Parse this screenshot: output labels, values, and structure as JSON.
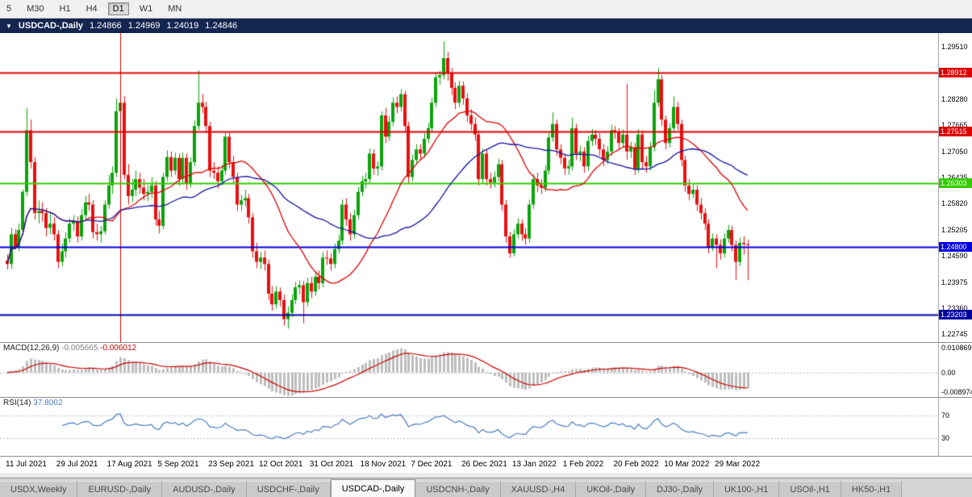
{
  "toolbar": {
    "timeframes": [
      {
        "label": "5",
        "active": false
      },
      {
        "label": "M30",
        "active": false
      },
      {
        "label": "H1",
        "active": false
      },
      {
        "label": "H4",
        "active": false
      },
      {
        "label": "D1",
        "active": true
      },
      {
        "label": "W1",
        "active": false
      },
      {
        "label": "MN",
        "active": false
      }
    ]
  },
  "title_bar": {
    "collapse_icon": "▼",
    "symbol": "USDCAD-,Daily",
    "open": "1.24866",
    "high": "1.24969",
    "low": "1.24019",
    "close": "1.24846"
  },
  "hlines": [
    {
      "price": 1.28912,
      "color": "#dd0000",
      "width": 2
    },
    {
      "price": 1.27515,
      "color": "#dd0000",
      "width": 2
    },
    {
      "price": 1.26303,
      "color": "#33cc00",
      "width": 2
    },
    {
      "price": 1.248,
      "color": "#0000dd",
      "width": 2
    },
    {
      "price": 1.23203,
      "color": "#0000a0",
      "width": 2
    }
  ],
  "vlines": [
    {
      "index": 29,
      "color": "#cc0000"
    }
  ],
  "chart_data": {
    "type": "candlestick",
    "symbol": "USDCAD",
    "timeframe": "Daily",
    "ylim": [
      1.2256,
      1.2984
    ],
    "colors": {
      "bull": "#0ba30b",
      "bear": "#e81010"
    },
    "y_ticks": [
      1.2951,
      1.2828,
      1.27665,
      1.2705,
      1.26435,
      1.2582,
      1.25205,
      1.2459,
      1.23975,
      1.2336,
      1.22745
    ],
    "x_label_step": 13,
    "x_labels": [
      "11 Jul 2021",
      "29 Jul 2021",
      "17 Aug 2021",
      "5 Sep 2021",
      "23 Sep 2021",
      "12 Oct 2021",
      "31 Oct 2021",
      "18 Nov 2021",
      "7 Dec 2021",
      "26 Dec 2021",
      "13 Jan 2022",
      "1 Feb 2022",
      "20 Feb 2022",
      "10 Mar 2022",
      "29 Mar 2022"
    ],
    "overlays": [
      {
        "name": "ma-fast",
        "period": 21,
        "color": "#dd0000"
      },
      {
        "name": "ma-slow",
        "period": 42,
        "color": "#1414a0"
      }
    ],
    "indicators": [
      {
        "name": "MACD",
        "label": "MACD(12,26,9)",
        "value_main": "-0.005665",
        "value_signal": "-0.006012",
        "params": [
          12,
          26,
          9
        ],
        "range": [
          -0.008974,
          0.010869
        ],
        "axis_labels": [
          "0.010869",
          "0.00",
          "-0.008974"
        ],
        "colors": {
          "histogram": "#bdbdbd",
          "signal": "#cc0000"
        }
      },
      {
        "name": "RSI",
        "label": "RSI(14)",
        "value": "37.8002",
        "period": 14,
        "levels": [
          70,
          30
        ],
        "axis_labels": [
          "70",
          "30"
        ],
        "range": [
          0,
          100
        ],
        "color": "#4a7ebf"
      }
    ],
    "candles": [
      [
        1.2448,
        1.2463,
        1.2427,
        1.244
      ],
      [
        1.244,
        1.2525,
        1.2428,
        1.251
      ],
      [
        1.251,
        1.2522,
        1.2475,
        1.248
      ],
      [
        1.248,
        1.2535,
        1.247,
        1.252
      ],
      [
        1.252,
        1.2615,
        1.2508,
        1.261
      ],
      [
        1.261,
        1.2807,
        1.26,
        1.2755
      ],
      [
        1.2755,
        1.278,
        1.2665,
        1.268
      ],
      [
        1.268,
        1.2692,
        1.2545,
        1.256
      ],
      [
        1.256,
        1.259,
        1.2535,
        1.2565
      ],
      [
        1.2565,
        1.2585,
        1.254,
        1.256
      ],
      [
        1.256,
        1.2572,
        1.2505,
        1.2525
      ],
      [
        1.2525,
        1.256,
        1.251,
        1.2535
      ],
      [
        1.2535,
        1.255,
        1.2495,
        1.251
      ],
      [
        1.251,
        1.252,
        1.243,
        1.2445
      ],
      [
        1.2445,
        1.2488,
        1.2435,
        1.247
      ],
      [
        1.247,
        1.2515,
        1.2455,
        1.25
      ],
      [
        1.25,
        1.2548,
        1.249,
        1.2535
      ],
      [
        1.2535,
        1.2555,
        1.2518,
        1.254
      ],
      [
        1.254,
        1.2552,
        1.249,
        1.2505
      ],
      [
        1.2505,
        1.257,
        1.2495,
        1.2555
      ],
      [
        1.2555,
        1.26,
        1.2545,
        1.2585
      ],
      [
        1.2585,
        1.2605,
        1.2565,
        1.258
      ],
      [
        1.258,
        1.259,
        1.25,
        1.2515
      ],
      [
        1.2515,
        1.2535,
        1.2495,
        1.251
      ],
      [
        1.251,
        1.253,
        1.249,
        1.2517
      ],
      [
        1.2517,
        1.259,
        1.251,
        1.258
      ],
      [
        1.258,
        1.265,
        1.257,
        1.2625
      ],
      [
        1.2625,
        1.267,
        1.2605,
        1.2655
      ],
      [
        1.2655,
        1.283,
        1.2645,
        1.28
      ],
      [
        1.28,
        1.2949,
        1.277,
        1.282
      ],
      [
        1.282,
        1.2835,
        1.264,
        1.265
      ],
      [
        1.265,
        1.2675,
        1.258,
        1.26
      ],
      [
        1.26,
        1.264,
        1.2585,
        1.2615
      ],
      [
        1.2615,
        1.266,
        1.26,
        1.264
      ],
      [
        1.264,
        1.2655,
        1.2605,
        1.262
      ],
      [
        1.262,
        1.264,
        1.259,
        1.2605
      ],
      [
        1.2605,
        1.2625,
        1.2588,
        1.261
      ],
      [
        1.261,
        1.2645,
        1.2595,
        1.2625
      ],
      [
        1.2625,
        1.2635,
        1.253,
        1.2545
      ],
      [
        1.2545,
        1.2565,
        1.2512,
        1.253
      ],
      [
        1.253,
        1.2655,
        1.2522,
        1.2645
      ],
      [
        1.2645,
        1.2708,
        1.2635,
        1.2692
      ],
      [
        1.2692,
        1.2705,
        1.2645,
        1.266
      ],
      [
        1.266,
        1.2702,
        1.265,
        1.269
      ],
      [
        1.269,
        1.27,
        1.2625,
        1.264
      ],
      [
        1.264,
        1.2702,
        1.263,
        1.269
      ],
      [
        1.269,
        1.27,
        1.2615,
        1.263
      ],
      [
        1.263,
        1.2692,
        1.262,
        1.268
      ],
      [
        1.268,
        1.2778,
        1.267,
        1.2765
      ],
      [
        1.2765,
        1.2896,
        1.2755,
        1.282
      ],
      [
        1.282,
        1.284,
        1.2795,
        1.281
      ],
      [
        1.281,
        1.2822,
        1.2748,
        1.2765
      ],
      [
        1.2765,
        1.2775,
        1.2645,
        1.266
      ],
      [
        1.266,
        1.268,
        1.264,
        1.2655
      ],
      [
        1.2655,
        1.267,
        1.2618,
        1.2635
      ],
      [
        1.2635,
        1.2675,
        1.2625,
        1.266
      ],
      [
        1.266,
        1.2752,
        1.265,
        1.274
      ],
      [
        1.274,
        1.275,
        1.2665,
        1.268
      ],
      [
        1.268,
        1.2695,
        1.263,
        1.2645
      ],
      [
        1.2645,
        1.2655,
        1.2565,
        1.258
      ],
      [
        1.258,
        1.2602,
        1.2565,
        1.259
      ],
      [
        1.259,
        1.2615,
        1.2575,
        1.2595
      ],
      [
        1.2595,
        1.2605,
        1.2535,
        1.255
      ],
      [
        1.255,
        1.256,
        1.2455,
        1.247
      ],
      [
        1.247,
        1.249,
        1.243,
        1.2445
      ],
      [
        1.2445,
        1.2468,
        1.2428,
        1.2455
      ],
      [
        1.2455,
        1.2472,
        1.2425,
        1.244
      ],
      [
        1.244,
        1.245,
        1.2355,
        1.237
      ],
      [
        1.237,
        1.2388,
        1.233,
        1.2345
      ],
      [
        1.2345,
        1.2388,
        1.2335,
        1.2375
      ],
      [
        1.2375,
        1.2385,
        1.234,
        1.2355
      ],
      [
        1.2355,
        1.2368,
        1.2295,
        1.231
      ],
      [
        1.231,
        1.234,
        1.2288,
        1.2325
      ],
      [
        1.2325,
        1.2368,
        1.2315,
        1.2355
      ],
      [
        1.2355,
        1.2398,
        1.2345,
        1.2385
      ],
      [
        1.2385,
        1.2402,
        1.2368,
        1.239
      ],
      [
        1.239,
        1.24,
        1.23,
        1.235
      ],
      [
        1.235,
        1.2408,
        1.234,
        1.2395
      ],
      [
        1.2395,
        1.241,
        1.236,
        1.2375
      ],
      [
        1.2375,
        1.2422,
        1.2365,
        1.241
      ],
      [
        1.241,
        1.2425,
        1.238,
        1.2395
      ],
      [
        1.2395,
        1.2468,
        1.2385,
        1.2455
      ],
      [
        1.2455,
        1.2472,
        1.2438,
        1.2453
      ],
      [
        1.2453,
        1.2465,
        1.2425,
        1.244
      ],
      [
        1.244,
        1.2488,
        1.243,
        1.2475
      ],
      [
        1.2475,
        1.2508,
        1.2465,
        1.2495
      ],
      [
        1.2495,
        1.2592,
        1.2485,
        1.258
      ],
      [
        1.258,
        1.2595,
        1.253,
        1.2545
      ],
      [
        1.2545,
        1.256,
        1.2495,
        1.251
      ],
      [
        1.251,
        1.2568,
        1.25,
        1.2555
      ],
      [
        1.2555,
        1.2622,
        1.2545,
        1.261
      ],
      [
        1.261,
        1.2648,
        1.26,
        1.2635
      ],
      [
        1.2635,
        1.2655,
        1.2618,
        1.264
      ],
      [
        1.264,
        1.2712,
        1.263,
        1.27
      ],
      [
        1.27,
        1.271,
        1.265,
        1.2665
      ],
      [
        1.2665,
        1.2682,
        1.2648,
        1.267
      ],
      [
        1.267,
        1.28,
        1.266,
        1.279
      ],
      [
        1.279,
        1.2808,
        1.2725,
        1.274
      ],
      [
        1.274,
        1.2788,
        1.273,
        1.2775
      ],
      [
        1.2775,
        1.2832,
        1.2765,
        1.282
      ],
      [
        1.282,
        1.2835,
        1.2795,
        1.281
      ],
      [
        1.281,
        1.2852,
        1.28,
        1.284
      ],
      [
        1.284,
        1.2848,
        1.275,
        1.2765
      ],
      [
        1.2765,
        1.2775,
        1.263,
        1.2645
      ],
      [
        1.2645,
        1.2698,
        1.2635,
        1.2685
      ],
      [
        1.2685,
        1.2722,
        1.2675,
        1.271
      ],
      [
        1.271,
        1.2722,
        1.2685,
        1.27
      ],
      [
        1.27,
        1.2748,
        1.269,
        1.2735
      ],
      [
        1.2735,
        1.2772,
        1.2725,
        1.276
      ],
      [
        1.276,
        1.2832,
        1.275,
        1.282
      ],
      [
        1.282,
        1.2892,
        1.281,
        1.288
      ],
      [
        1.288,
        1.2895,
        1.2862,
        1.2885
      ],
      [
        1.2885,
        1.2964,
        1.2875,
        1.2925
      ],
      [
        1.2925,
        1.294,
        1.2872,
        1.289
      ],
      [
        1.289,
        1.2902,
        1.2838,
        1.2855
      ],
      [
        1.2855,
        1.2868,
        1.2805,
        1.282
      ],
      [
        1.282,
        1.2872,
        1.281,
        1.286
      ],
      [
        1.286,
        1.287,
        1.2815,
        1.283
      ],
      [
        1.283,
        1.2842,
        1.2775,
        1.279
      ],
      [
        1.279,
        1.2805,
        1.2755,
        1.277
      ],
      [
        1.277,
        1.2785,
        1.273,
        1.2745
      ],
      [
        1.2745,
        1.2755,
        1.2625,
        1.264
      ],
      [
        1.264,
        1.2712,
        1.263,
        1.27
      ],
      [
        1.27,
        1.271,
        1.2625,
        1.264
      ],
      [
        1.264,
        1.2655,
        1.2618,
        1.2632
      ],
      [
        1.2632,
        1.2658,
        1.262,
        1.2645
      ],
      [
        1.2645,
        1.2688,
        1.2635,
        1.2675
      ],
      [
        1.2675,
        1.2685,
        1.2565,
        1.258
      ],
      [
        1.258,
        1.259,
        1.249,
        1.2505
      ],
      [
        1.2505,
        1.2515,
        1.2455,
        1.2465
      ],
      [
        1.2465,
        1.2522,
        1.2458,
        1.251
      ],
      [
        1.251,
        1.2548,
        1.25,
        1.2535
      ],
      [
        1.2535,
        1.2545,
        1.2495,
        1.251
      ],
      [
        1.251,
        1.2525,
        1.2485,
        1.25
      ],
      [
        1.25,
        1.2592,
        1.249,
        1.258
      ],
      [
        1.258,
        1.2652,
        1.257,
        1.264
      ],
      [
        1.264,
        1.2655,
        1.261,
        1.2625
      ],
      [
        1.2625,
        1.264,
        1.2605,
        1.262
      ],
      [
        1.262,
        1.2672,
        1.261,
        1.266
      ],
      [
        1.266,
        1.275,
        1.265,
        1.2738
      ],
      [
        1.2738,
        1.2797,
        1.2728,
        1.277
      ],
      [
        1.277,
        1.278,
        1.2695,
        1.271
      ],
      [
        1.271,
        1.2722,
        1.2675,
        1.269
      ],
      [
        1.269,
        1.27,
        1.265,
        1.2665
      ],
      [
        1.2665,
        1.2685,
        1.265,
        1.267
      ],
      [
        1.267,
        1.2785,
        1.266,
        1.276
      ],
      [
        1.276,
        1.277,
        1.2685,
        1.27
      ],
      [
        1.27,
        1.2718,
        1.2682,
        1.2705
      ],
      [
        1.2705,
        1.2715,
        1.2655,
        1.267
      ],
      [
        1.267,
        1.2742,
        1.266,
        1.273
      ],
      [
        1.273,
        1.2758,
        1.2718,
        1.2745
      ],
      [
        1.2745,
        1.2755,
        1.272,
        1.2735
      ],
      [
        1.2735,
        1.2748,
        1.2695,
        1.271
      ],
      [
        1.271,
        1.2722,
        1.267,
        1.2685
      ],
      [
        1.2685,
        1.2718,
        1.2675,
        1.2705
      ],
      [
        1.2705,
        1.2768,
        1.2695,
        1.2755
      ],
      [
        1.2755,
        1.2765,
        1.2735,
        1.275
      ],
      [
        1.275,
        1.276,
        1.271,
        1.2725
      ],
      [
        1.2725,
        1.2758,
        1.2715,
        1.2745
      ],
      [
        1.2745,
        1.2865,
        1.2685,
        1.2705
      ],
      [
        1.2705,
        1.2728,
        1.269,
        1.2715
      ],
      [
        1.2715,
        1.2725,
        1.265,
        1.2665
      ],
      [
        1.2665,
        1.2758,
        1.2655,
        1.2745
      ],
      [
        1.2745,
        1.2755,
        1.2665,
        1.268
      ],
      [
        1.268,
        1.2695,
        1.2655,
        1.267
      ],
      [
        1.267,
        1.2728,
        1.266,
        1.2715
      ],
      [
        1.2715,
        1.285,
        1.2705,
        1.282
      ],
      [
        1.282,
        1.2901,
        1.281,
        1.2875
      ],
      [
        1.2875,
        1.2885,
        1.2765,
        1.278
      ],
      [
        1.278,
        1.279,
        1.271,
        1.2725
      ],
      [
        1.2725,
        1.2772,
        1.2715,
        1.276
      ],
      [
        1.276,
        1.2835,
        1.275,
        1.281
      ],
      [
        1.281,
        1.2822,
        1.2755,
        1.277
      ],
      [
        1.277,
        1.278,
        1.267,
        1.2685
      ],
      [
        1.2685,
        1.2695,
        1.261,
        1.2625
      ],
      [
        1.2625,
        1.264,
        1.259,
        1.2605
      ],
      [
        1.2605,
        1.2628,
        1.2595,
        1.2615
      ],
      [
        1.2615,
        1.2625,
        1.2565,
        1.258
      ],
      [
        1.258,
        1.2595,
        1.2545,
        1.256
      ],
      [
        1.256,
        1.2572,
        1.252,
        1.2535
      ],
      [
        1.2535,
        1.2545,
        1.2465,
        1.248
      ],
      [
        1.248,
        1.2512,
        1.247,
        1.25
      ],
      [
        1.25,
        1.251,
        1.243,
        1.2485
      ],
      [
        1.2485,
        1.2498,
        1.245,
        1.2465
      ],
      [
        1.2465,
        1.2512,
        1.2455,
        1.25
      ],
      [
        1.25,
        1.2532,
        1.249,
        1.252
      ],
      [
        1.252,
        1.253,
        1.247,
        1.2485
      ],
      [
        1.2485,
        1.2495,
        1.2402,
        1.2445
      ],
      [
        1.2445,
        1.2502,
        1.2435,
        1.249
      ],
      [
        1.249,
        1.2505,
        1.2462,
        1.2487
      ],
      [
        1.24866,
        1.24969,
        1.24019,
        1.24846
      ]
    ]
  },
  "tabs": [
    {
      "label": "USDX,Weekly",
      "active": false
    },
    {
      "label": "EURUSD-,Daily",
      "active": false
    },
    {
      "label": "AUDUSD-,Daily",
      "active": false
    },
    {
      "label": "USDCHF-,Daily",
      "active": false
    },
    {
      "label": "USDCAD-,Daily",
      "active": true
    },
    {
      "label": "USDCNH-,Daily",
      "active": false
    },
    {
      "label": "XAUUSD-,H4",
      "active": false
    },
    {
      "label": "UKOil-,Daily",
      "active": false
    },
    {
      "label": "DJ30-,Daily",
      "active": false
    },
    {
      "label": "UK100-,H1",
      "active": false
    },
    {
      "label": "USOil-,H1",
      "active": false
    },
    {
      "label": "HK50-,H1",
      "active": false
    }
  ]
}
